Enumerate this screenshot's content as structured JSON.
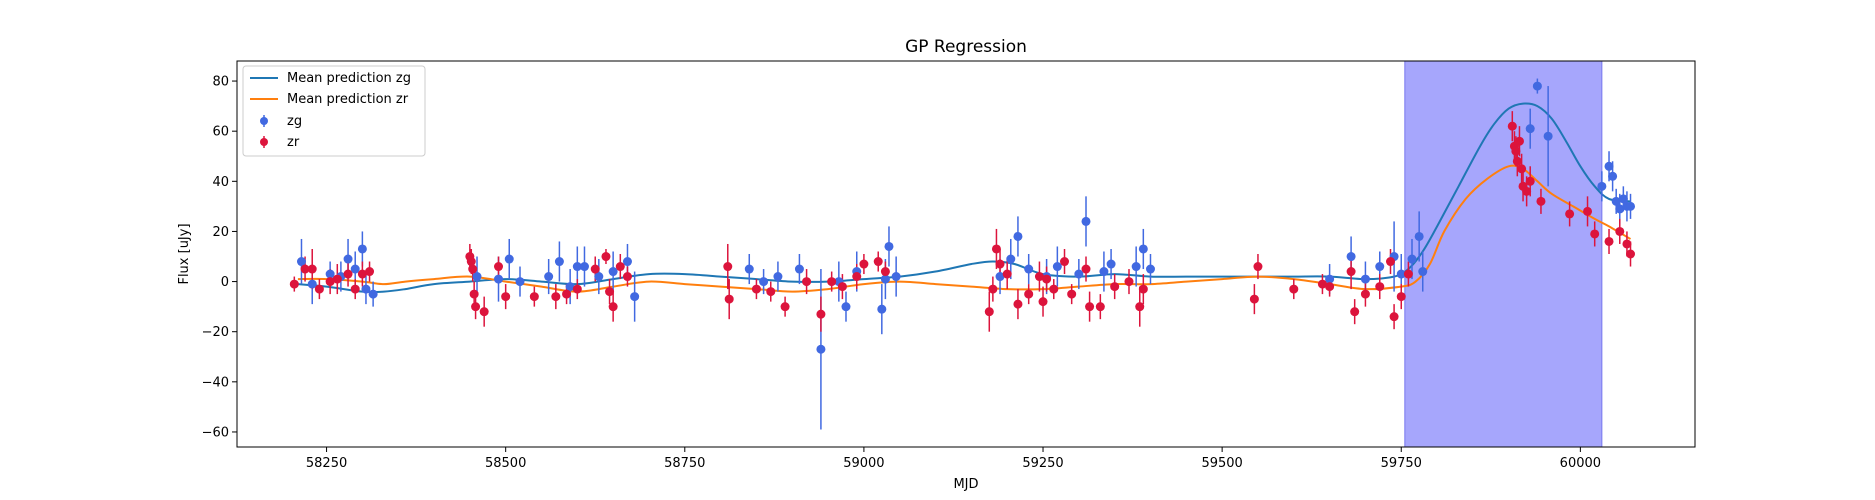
{
  "chart_data": {
    "type": "scatter",
    "title": "GP Regression",
    "xlabel": "MJD",
    "ylabel": "Flux [uJy]",
    "xlim": [
      58125,
      60160
    ],
    "ylim": [
      -66,
      88
    ],
    "xticks": [
      58250,
      58500,
      58750,
      59000,
      59250,
      59500,
      59750,
      60000
    ],
    "yticks": [
      -60,
      -40,
      -20,
      0,
      20,
      40,
      60,
      80
    ],
    "grid": false,
    "legend_position": "top-left",
    "shaded_region": {
      "x_start": 59755,
      "x_end": 60030,
      "color": "#a6a6fc"
    },
    "lines": [
      {
        "name": "Mean prediction zg",
        "color": "#1f77b4",
        "x": [
          58210,
          58250,
          58300,
          58330,
          58360,
          58400,
          58450,
          58500,
          58550,
          58600,
          58650,
          58700,
          58750,
          58800,
          58850,
          58900,
          58950,
          59000,
          59050,
          59100,
          59150,
          59180,
          59210,
          59250,
          59300,
          59350,
          59400,
          59450,
          59500,
          59550,
          59600,
          59650,
          59700,
          59740,
          59760,
          59780,
          59800,
          59830,
          59860,
          59880,
          59900,
          59920,
          59940,
          59960,
          59980,
          60000,
          60020,
          60040,
          60070
        ],
        "y": [
          -1,
          -2,
          -4,
          -4,
          -3,
          -1,
          0,
          1,
          0,
          -1,
          1,
          3,
          3,
          2,
          1,
          0,
          0,
          1,
          2,
          4,
          7,
          8,
          7,
          3,
          2,
          3,
          2,
          2,
          2,
          2,
          2,
          2,
          1,
          2,
          5,
          12,
          22,
          38,
          54,
          63,
          69,
          71,
          70,
          65,
          56,
          46,
          38,
          33,
          32
        ]
      },
      {
        "name": "Mean prediction zr",
        "color": "#ff7f0e",
        "x": [
          58210,
          58250,
          58300,
          58330,
          58360,
          58400,
          58450,
          58500,
          58550,
          58600,
          58650,
          58700,
          58750,
          58800,
          58850,
          58900,
          58950,
          59000,
          59050,
          59100,
          59150,
          59200,
          59250,
          59300,
          59350,
          59400,
          59450,
          59500,
          59550,
          59600,
          59650,
          59700,
          59750,
          59770,
          59790,
          59810,
          59840,
          59870,
          59900,
          59920,
          59940,
          59960,
          59990,
          60020,
          60040,
          60070
        ],
        "y": [
          1,
          1,
          0,
          -1,
          0,
          1,
          2,
          0,
          -2,
          -4,
          -2,
          0,
          -1,
          -2,
          -3,
          -4,
          -3,
          -1,
          0,
          -1,
          -2,
          -3,
          -3,
          -2,
          -1,
          -1,
          0,
          1,
          2,
          1,
          -1,
          -3,
          -2,
          0,
          7,
          20,
          33,
          41,
          46,
          45,
          40,
          35,
          30,
          25,
          22,
          17
        ]
      }
    ],
    "series": [
      {
        "name": "zg",
        "color": "#4169e1",
        "points": [
          [
            58215,
            8,
            9
          ],
          [
            58230,
            -1,
            8
          ],
          [
            58255,
            3,
            5
          ],
          [
            58270,
            2,
            6
          ],
          [
            58280,
            9,
            8
          ],
          [
            58290,
            5,
            7
          ],
          [
            58300,
            13,
            7
          ],
          [
            58305,
            -3,
            6
          ],
          [
            58315,
            -5,
            5
          ],
          [
            58460,
            2,
            8
          ],
          [
            58490,
            1,
            9
          ],
          [
            58505,
            9,
            8
          ],
          [
            58520,
            0,
            6
          ],
          [
            58560,
            2,
            7
          ],
          [
            58575,
            8,
            8
          ],
          [
            58590,
            -2,
            7
          ],
          [
            58600,
            6,
            8
          ],
          [
            58610,
            6,
            8
          ],
          [
            58630,
            2,
            7
          ],
          [
            58650,
            4,
            8
          ],
          [
            58670,
            8,
            7
          ],
          [
            58680,
            -6,
            10
          ],
          [
            58840,
            5,
            6
          ],
          [
            58860,
            0,
            5
          ],
          [
            58880,
            2,
            6
          ],
          [
            58910,
            5,
            6
          ],
          [
            58940,
            -27,
            32
          ],
          [
            58965,
            0,
            8
          ],
          [
            58975,
            -10,
            6
          ],
          [
            58990,
            4,
            8
          ],
          [
            59025,
            -11,
            10
          ],
          [
            59030,
            1,
            8
          ],
          [
            59035,
            14,
            8
          ],
          [
            59045,
            2,
            8
          ],
          [
            59190,
            2,
            7
          ],
          [
            59205,
            9,
            8
          ],
          [
            59215,
            18,
            8
          ],
          [
            59230,
            5,
            6
          ],
          [
            59255,
            2,
            7
          ],
          [
            59270,
            6,
            8
          ],
          [
            59300,
            3,
            6
          ],
          [
            59310,
            24,
            10
          ],
          [
            59335,
            4,
            8
          ],
          [
            59345,
            7,
            6
          ],
          [
            59380,
            6,
            8
          ],
          [
            59390,
            13,
            8
          ],
          [
            59400,
            5,
            6
          ],
          [
            59650,
            1,
            6
          ],
          [
            59680,
            10,
            8
          ],
          [
            59700,
            1,
            7
          ],
          [
            59720,
            6,
            6
          ],
          [
            59740,
            10,
            14
          ],
          [
            59750,
            3,
            8
          ],
          [
            59765,
            9,
            8
          ],
          [
            59775,
            18,
            10
          ],
          [
            59780,
            4,
            8
          ],
          [
            59930,
            61,
            8
          ],
          [
            59940,
            78,
            3
          ],
          [
            59955,
            58,
            20
          ],
          [
            60030,
            38,
            6
          ],
          [
            60040,
            46,
            6
          ],
          [
            60045,
            42,
            6
          ],
          [
            60050,
            32,
            5
          ],
          [
            60055,
            29,
            6
          ],
          [
            60060,
            33,
            5
          ],
          [
            60065,
            30,
            6
          ],
          [
            60070,
            30,
            5
          ]
        ]
      },
      {
        "name": "zr",
        "color": "#dc143c",
        "points": [
          [
            58205,
            -1,
            3
          ],
          [
            58220,
            5,
            5
          ],
          [
            58230,
            5,
            8
          ],
          [
            58240,
            -3,
            4
          ],
          [
            58255,
            0,
            5
          ],
          [
            58265,
            1,
            6
          ],
          [
            58280,
            3,
            5
          ],
          [
            58290,
            -3,
            4
          ],
          [
            58300,
            3,
            5
          ],
          [
            58310,
            4,
            4
          ],
          [
            58450,
            10,
            5
          ],
          [
            58452,
            8,
            5
          ],
          [
            58454,
            5,
            5
          ],
          [
            58456,
            -5,
            5
          ],
          [
            58458,
            -10,
            5
          ],
          [
            58470,
            -12,
            6
          ],
          [
            58490,
            6,
            4
          ],
          [
            58500,
            -6,
            5
          ],
          [
            58540,
            -6,
            4
          ],
          [
            58570,
            -6,
            5
          ],
          [
            58585,
            -5,
            4
          ],
          [
            58600,
            -3,
            4
          ],
          [
            58625,
            5,
            5
          ],
          [
            58640,
            10,
            3
          ],
          [
            58645,
            -4,
            5
          ],
          [
            58650,
            -10,
            6
          ],
          [
            58660,
            6,
            5
          ],
          [
            58670,
            2,
            4
          ],
          [
            58810,
            6,
            9
          ],
          [
            58812,
            -7,
            8
          ],
          [
            58850,
            -3,
            4
          ],
          [
            58870,
            -4,
            4
          ],
          [
            58890,
            -10,
            4
          ],
          [
            58920,
            0,
            5
          ],
          [
            58940,
            -13,
            7
          ],
          [
            58955,
            0,
            4
          ],
          [
            58970,
            -2,
            5
          ],
          [
            58990,
            2,
            5
          ],
          [
            59000,
            7,
            4
          ],
          [
            59020,
            8,
            4
          ],
          [
            59030,
            4,
            4
          ],
          [
            59175,
            -12,
            8
          ],
          [
            59180,
            -3,
            5
          ],
          [
            59185,
            13,
            8
          ],
          [
            59190,
            7,
            6
          ],
          [
            59200,
            3,
            6
          ],
          [
            59215,
            -9,
            6
          ],
          [
            59230,
            -5,
            4
          ],
          [
            59245,
            2,
            6
          ],
          [
            59250,
            -8,
            6
          ],
          [
            59255,
            1,
            5
          ],
          [
            59265,
            -3,
            4
          ],
          [
            59280,
            8,
            5
          ],
          [
            59290,
            -5,
            4
          ],
          [
            59310,
            5,
            5
          ],
          [
            59315,
            -10,
            6
          ],
          [
            59330,
            -10,
            5
          ],
          [
            59350,
            -2,
            5
          ],
          [
            59370,
            0,
            5
          ],
          [
            59385,
            -10,
            8
          ],
          [
            59390,
            -3,
            6
          ],
          [
            59545,
            -7,
            6
          ],
          [
            59550,
            6,
            5
          ],
          [
            59600,
            -3,
            4
          ],
          [
            59640,
            -1,
            4
          ],
          [
            59650,
            -2,
            4
          ],
          [
            59680,
            4,
            7
          ],
          [
            59685,
            -12,
            5
          ],
          [
            59700,
            -5,
            5
          ],
          [
            59720,
            -2,
            5
          ],
          [
            59735,
            8,
            5
          ],
          [
            59740,
            -14,
            5
          ],
          [
            59750,
            -6,
            5
          ],
          [
            59760,
            3,
            5
          ],
          [
            59905,
            62,
            6
          ],
          [
            59908,
            54,
            6
          ],
          [
            59910,
            52,
            6
          ],
          [
            59912,
            48,
            6
          ],
          [
            59915,
            56,
            6
          ],
          [
            59918,
            45,
            6
          ],
          [
            59920,
            38,
            6
          ],
          [
            59925,
            36,
            6
          ],
          [
            59930,
            40,
            6
          ],
          [
            59945,
            32,
            5
          ],
          [
            59985,
            27,
            5
          ],
          [
            60010,
            28,
            6
          ],
          [
            60020,
            19,
            5
          ],
          [
            60040,
            16,
            5
          ],
          [
            60055,
            20,
            5
          ],
          [
            60065,
            15,
            5
          ],
          [
            60070,
            11,
            5
          ]
        ]
      }
    ]
  }
}
